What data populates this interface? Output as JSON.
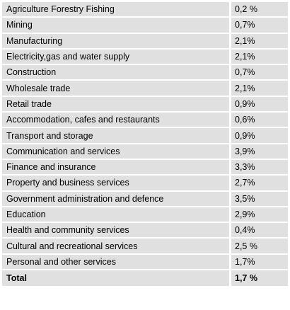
{
  "table": {
    "rows": [
      {
        "sector": "Agriculture Forestry Fishing",
        "value": "0,2 %"
      },
      {
        "sector": "Mining",
        "value": "0,7%"
      },
      {
        "sector": "Manufacturing",
        "value": "2,1%"
      },
      {
        "sector": "Electricity,gas and water supply",
        "value": "2,1%"
      },
      {
        "sector": "Construction",
        "value": "0,7%"
      },
      {
        "sector": "Wholesale trade",
        "value": "2,1%"
      },
      {
        "sector": "Retail trade",
        "value": "0,9%"
      },
      {
        "sector": "Accommodation, cafes and restaurants",
        "value": "0,6%"
      },
      {
        "sector": "Transport and storage",
        "value": "0,9%"
      },
      {
        "sector": "Communication and services",
        "value": "3,9%"
      },
      {
        "sector": "Finance and insurance",
        "value": "3,3%"
      },
      {
        "sector": "Property and business services",
        "value": "2,7%"
      },
      {
        "sector": "Government administration and defence",
        "value": "3,5%"
      },
      {
        "sector": "Education",
        "value": "2,9%"
      },
      {
        "sector": "Health and community services",
        "value": "0,4%"
      },
      {
        "sector": "Cultural and recreational services",
        "value": "2,5 %"
      },
      {
        "sector": "Personal and other services",
        "value": "1,7%"
      }
    ],
    "total": {
      "sector": "Total",
      "value": "1,7 %"
    }
  }
}
